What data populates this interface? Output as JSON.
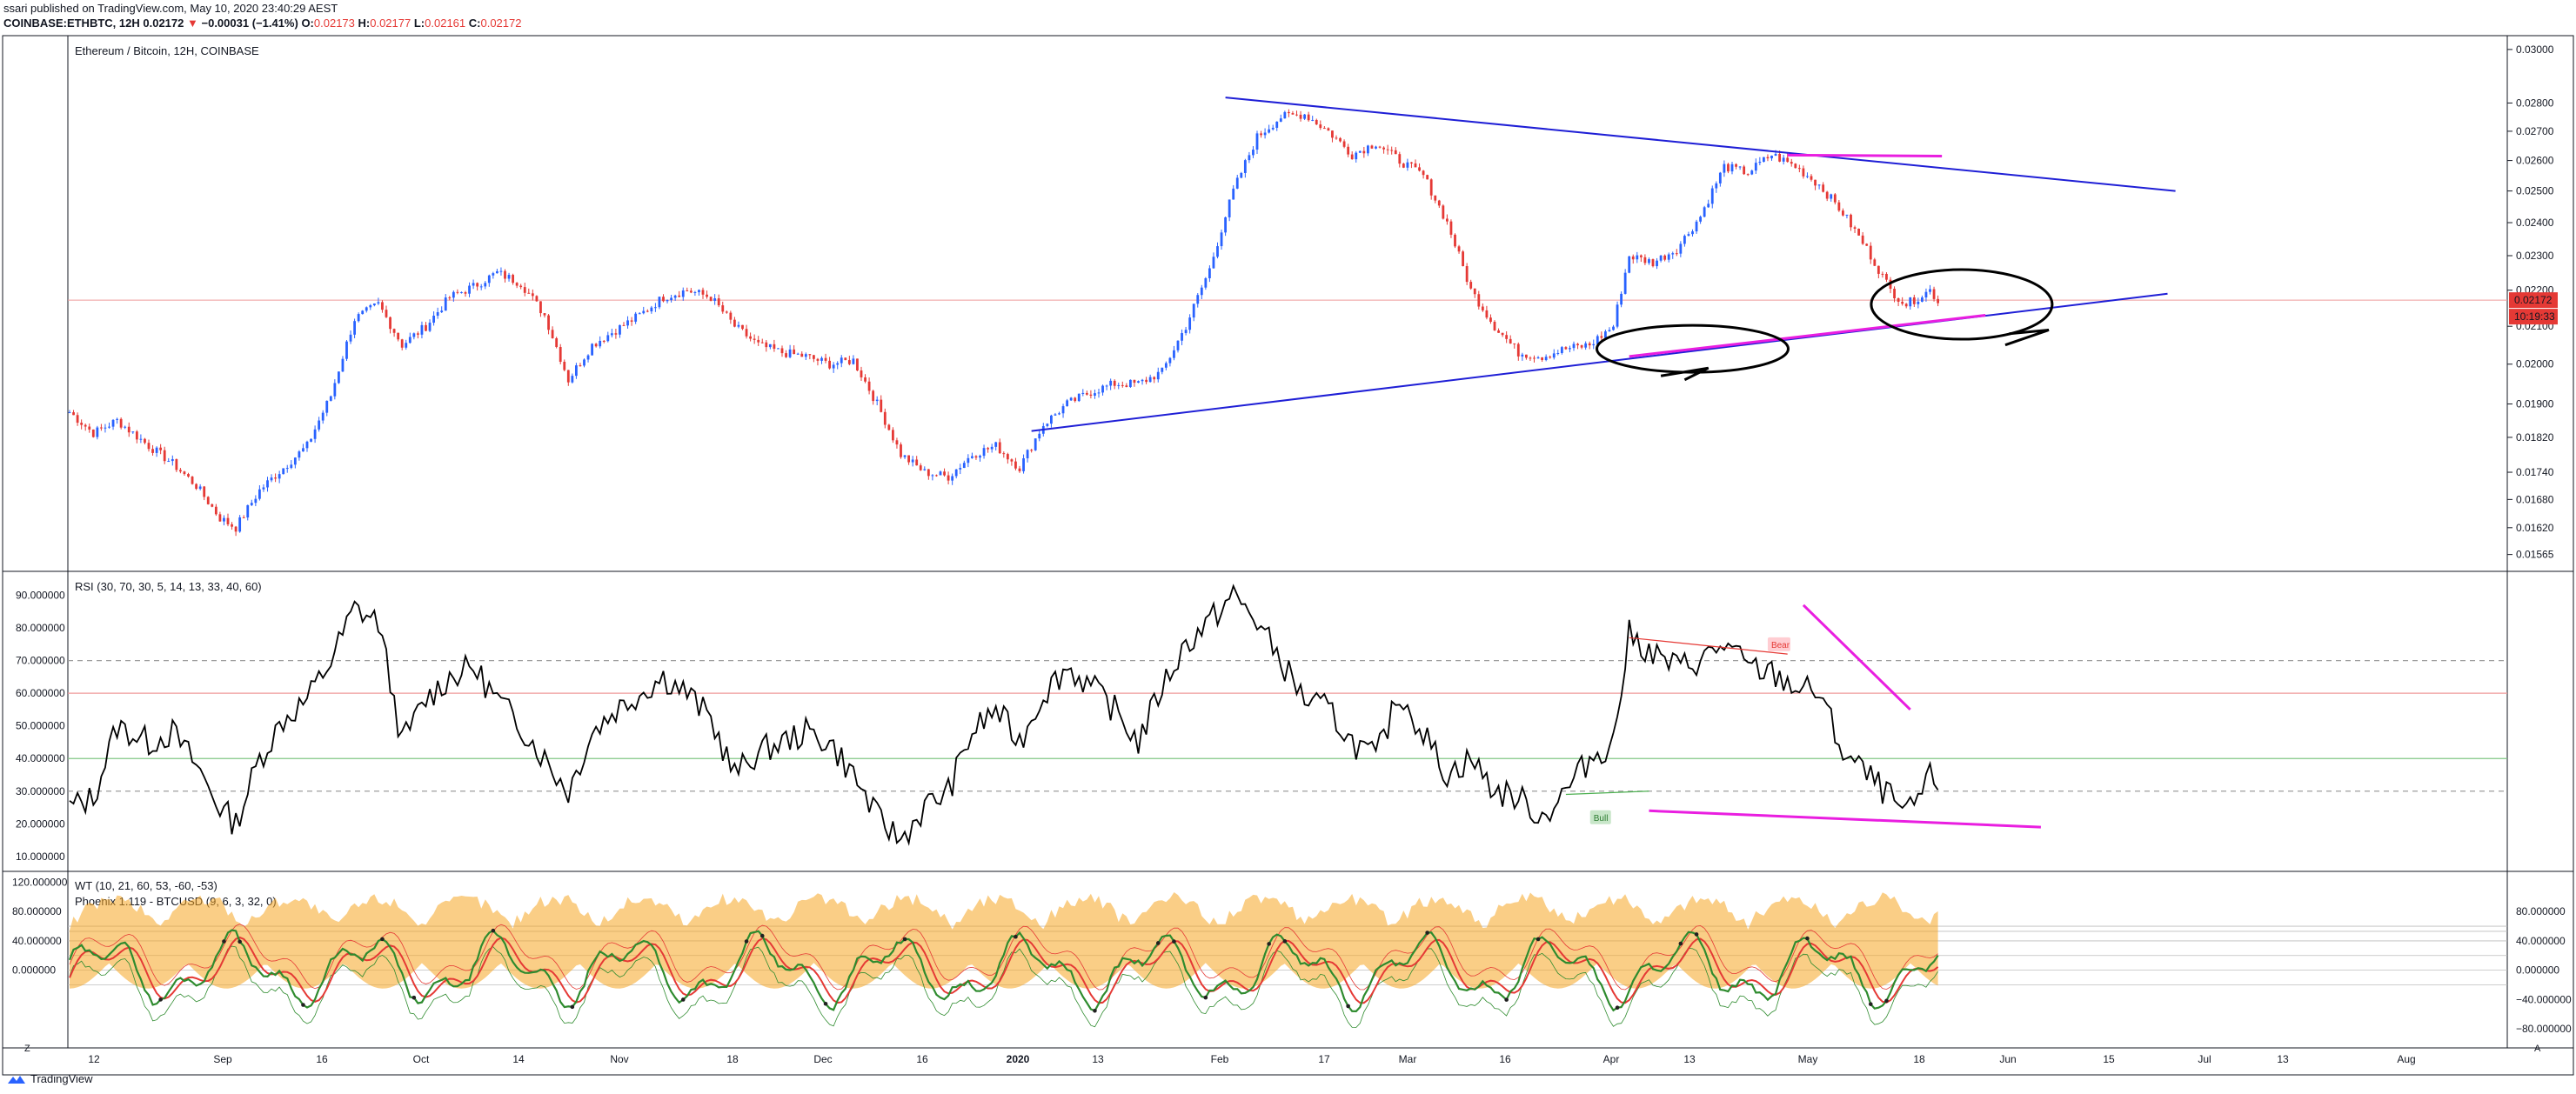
{
  "header": {
    "author_line": "ssari published on TradingView.com, May 10, 2020 23:40:29 AEST",
    "symbol": "COINBASE:ETHBTC, 12H",
    "last": "0.02172",
    "change_arrow": "▼",
    "change": "−0.00031 (−1.41%)",
    "o_label": "O:",
    "o": "0.02173",
    "h_label": "H:",
    "h": "0.02177",
    "l_label": "L:",
    "l": "0.02161",
    "c_label": "C:",
    "c": "0.02172"
  },
  "main_pane": {
    "title": "Ethereum / Bitcoin, 12H, COINBASE",
    "price_tag": "0.02172",
    "countdown_tag": "10:19:33"
  },
  "rsi_pane": {
    "title": "RSI (30, 70, 30, 5, 14, 13, 33, 40, 60)",
    "bear_label": "Bear",
    "bull_label": "Bull"
  },
  "wt_pane": {
    "title1": "WT (10, 21, 60, 53, -60, -53)",
    "title2": "Phoenix 1.119 - BTCUSD (9, 6, 3, 32, 0)"
  },
  "footer": {
    "brand": "TradingView",
    "left_btn": "Z",
    "right_btn": "A"
  },
  "colors": {
    "up": "#2962ff",
    "down": "#e53935",
    "trendline": "#1f1fd6",
    "magenta": "#e91ee0",
    "rsi": "#000000",
    "wt_fill": "#f5a623",
    "wt_green": "#2e8b2e",
    "wt_red": "#e53935"
  },
  "chart_data": [
    {
      "type": "candlestick",
      "title": "Ethereum / Bitcoin, 12H, COINBASE",
      "x_ticks": [
        "12",
        "Sep",
        "16",
        "Oct",
        "14",
        "Nov",
        "18",
        "Dec",
        "16",
        "2020",
        "13",
        "Feb",
        "17",
        "Mar",
        "16",
        "Apr",
        "13",
        "May",
        "18",
        "Jun",
        "15",
        "Jul",
        "13",
        "Aug"
      ],
      "y_scale": "log",
      "y_ticks": [
        "0.03000",
        "0.02800",
        "0.02700",
        "0.02600",
        "0.02500",
        "0.02400",
        "0.02300",
        "0.02200",
        "0.02100",
        "0.02000",
        "0.01900",
        "0.01820",
        "0.01740",
        "0.01680",
        "0.01620",
        "0.01565"
      ],
      "ylim": [
        0.0154,
        0.0303
      ],
      "close_path": [
        [
          0,
          0.0188
        ],
        [
          6,
          0.0183
        ],
        [
          12,
          0.0186
        ],
        [
          20,
          0.018
        ],
        [
          26,
          0.0176
        ],
        [
          32,
          0.0171
        ],
        [
          38,
          0.0164
        ],
        [
          42,
          0.0162
        ],
        [
          48,
          0.017
        ],
        [
          54,
          0.0175
        ],
        [
          60,
          0.018
        ],
        [
          66,
          0.0192
        ],
        [
          72,
          0.0212
        ],
        [
          78,
          0.0216
        ],
        [
          84,
          0.0205
        ],
        [
          90,
          0.021
        ],
        [
          96,
          0.0218
        ],
        [
          102,
          0.0221
        ],
        [
          108,
          0.0225
        ],
        [
          114,
          0.0222
        ],
        [
          120,
          0.0213
        ],
        [
          126,
          0.0196
        ],
        [
          132,
          0.0205
        ],
        [
          138,
          0.0209
        ],
        [
          144,
          0.0213
        ],
        [
          150,
          0.0218
        ],
        [
          156,
          0.022
        ],
        [
          162,
          0.0218
        ],
        [
          168,
          0.021
        ],
        [
          174,
          0.0205
        ],
        [
          180,
          0.0203
        ],
        [
          186,
          0.0202
        ],
        [
          192,
          0.02
        ],
        [
          198,
          0.0201
        ],
        [
          204,
          0.019
        ],
        [
          210,
          0.0178
        ],
        [
          216,
          0.0174
        ],
        [
          222,
          0.0173
        ],
        [
          228,
          0.0178
        ],
        [
          234,
          0.018
        ],
        [
          240,
          0.0175
        ],
        [
          246,
          0.0185
        ],
        [
          252,
          0.019
        ],
        [
          258,
          0.0193
        ],
        [
          264,
          0.0195
        ],
        [
          270,
          0.0195
        ],
        [
          276,
          0.0198
        ],
        [
          282,
          0.021
        ],
        [
          288,
          0.0226
        ],
        [
          294,
          0.025
        ],
        [
          300,
          0.0268
        ],
        [
          306,
          0.0275
        ],
        [
          312,
          0.0276
        ],
        [
          318,
          0.027
        ],
        [
          324,
          0.0262
        ],
        [
          330,
          0.0266
        ],
        [
          336,
          0.026
        ],
        [
          342,
          0.0255
        ],
        [
          348,
          0.024
        ],
        [
          354,
          0.022
        ],
        [
          360,
          0.021
        ],
        [
          366,
          0.0203
        ],
        [
          372,
          0.0202
        ],
        [
          378,
          0.0204
        ],
        [
          384,
          0.0205
        ],
        [
          390,
          0.021
        ],
        [
          394,
          0.023
        ],
        [
          400,
          0.0228
        ],
        [
          406,
          0.0232
        ],
        [
          412,
          0.0242
        ],
        [
          418,
          0.0258
        ],
        [
          424,
          0.0256
        ],
        [
          430,
          0.0262
        ],
        [
          436,
          0.0258
        ],
        [
          442,
          0.0252
        ],
        [
          448,
          0.0243
        ],
        [
          454,
          0.0232
        ],
        [
          460,
          0.022
        ],
        [
          464,
          0.0216
        ],
        [
          470,
          0.022
        ],
        [
          472,
          0.0217
        ]
      ],
      "last": 0.02172
    },
    {
      "type": "line",
      "title": "RSI (30, 70, 30, 5, 14, 13, 33, 40, 60)",
      "y_ticks": [
        "90.000000",
        "80.000000",
        "70.000000",
        "60.000000",
        "50.000000",
        "40.000000",
        "30.000000",
        "20.000000",
        "10.000000"
      ],
      "ylim": [
        6.5,
        96.0
      ],
      "levels": [
        70,
        60,
        40,
        30
      ],
      "values": [
        [
          0,
          25
        ],
        [
          6,
          28
        ],
        [
          12,
          50
        ],
        [
          20,
          45
        ],
        [
          26,
          48
        ],
        [
          32,
          38
        ],
        [
          38,
          25
        ],
        [
          42,
          20
        ],
        [
          48,
          40
        ],
        [
          54,
          52
        ],
        [
          60,
          58
        ],
        [
          66,
          70
        ],
        [
          72,
          86
        ],
        [
          78,
          82
        ],
        [
          84,
          45
        ],
        [
          90,
          58
        ],
        [
          96,
          65
        ],
        [
          102,
          68
        ],
        [
          108,
          58
        ],
        [
          114,
          50
        ],
        [
          120,
          40
        ],
        [
          126,
          30
        ],
        [
          132,
          48
        ],
        [
          138,
          55
        ],
        [
          144,
          60
        ],
        [
          150,
          65
        ],
        [
          156,
          60
        ],
        [
          162,
          52
        ],
        [
          168,
          35
        ],
        [
          174,
          42
        ],
        [
          180,
          45
        ],
        [
          186,
          48
        ],
        [
          192,
          45
        ],
        [
          198,
          35
        ],
        [
          204,
          22
        ],
        [
          210,
          15
        ],
        [
          216,
          25
        ],
        [
          222,
          30
        ],
        [
          228,
          48
        ],
        [
          234,
          55
        ],
        [
          240,
          45
        ],
        [
          246,
          60
        ],
        [
          252,
          68
        ],
        [
          258,
          62
        ],
        [
          264,
          55
        ],
        [
          270,
          45
        ],
        [
          276,
          62
        ],
        [
          282,
          75
        ],
        [
          288,
          82
        ],
        [
          294,
          90
        ],
        [
          300,
          82
        ],
        [
          306,
          70
        ],
        [
          312,
          58
        ],
        [
          318,
          55
        ],
        [
          324,
          45
        ],
        [
          330,
          40
        ],
        [
          336,
          60
        ],
        [
          342,
          48
        ],
        [
          348,
          35
        ],
        [
          354,
          40
        ],
        [
          360,
          30
        ],
        [
          366,
          28
        ],
        [
          372,
          22
        ],
        [
          378,
          30
        ],
        [
          384,
          40
        ],
        [
          390,
          45
        ],
        [
          394,
          78
        ],
        [
          400,
          72
        ],
        [
          406,
          68
        ],
        [
          412,
          70
        ],
        [
          418,
          75
        ],
        [
          424,
          68
        ],
        [
          430,
          66
        ],
        [
          436,
          62
        ],
        [
          442,
          60
        ],
        [
          448,
          42
        ],
        [
          454,
          35
        ],
        [
          460,
          28
        ],
        [
          464,
          22
        ],
        [
          470,
          34
        ],
        [
          472,
          33
        ]
      ]
    },
    {
      "type": "line",
      "title": "WT (10, 21, 60, 53, -60, -53)",
      "left_y_ticks": [
        "120.000000",
        "80.000000",
        "40.000000",
        "0.000000"
      ],
      "right_y_ticks": [
        "80.000000",
        "40.000000",
        "0.000000",
        "−40.000000",
        "−80.000000"
      ],
      "ylim": [
        -100,
        130
      ]
    }
  ]
}
